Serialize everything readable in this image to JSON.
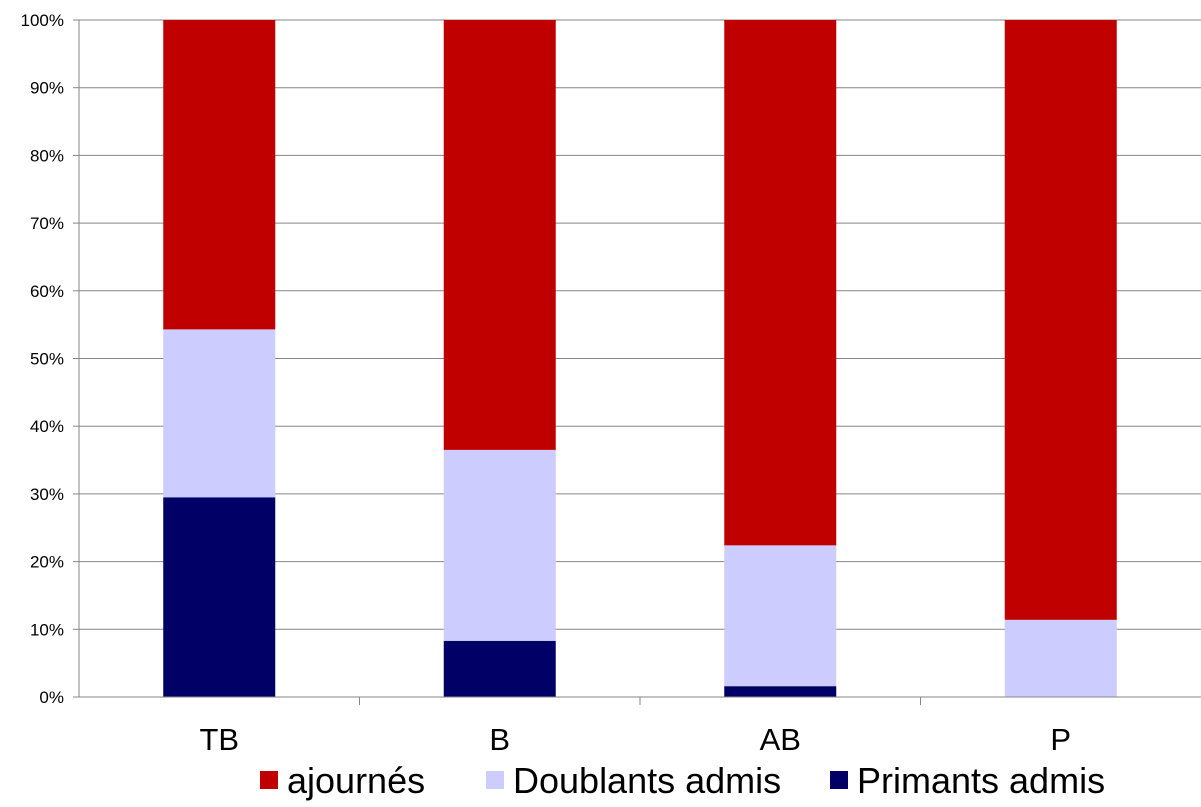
{
  "chart_data": {
    "type": "bar",
    "stacked": true,
    "percent": true,
    "categories": [
      "TB",
      "B",
      "AB",
      "P"
    ],
    "series": [
      {
        "name": "Primants admis",
        "color": "#000066",
        "values": [
          29.5,
          8.3,
          1.6,
          0
        ]
      },
      {
        "name": "Doublants admis",
        "color": "#CCCCFF",
        "values": [
          24.8,
          28.2,
          20.8,
          11.4
        ]
      },
      {
        "name": "ajournés",
        "color": "#C00000",
        "values": [
          45.7,
          63.5,
          77.6,
          88.6
        ]
      }
    ],
    "ylim": [
      0,
      100
    ],
    "yticks": [
      "0%",
      "10%",
      "20%",
      "30%",
      "40%",
      "50%",
      "60%",
      "70%",
      "80%",
      "90%",
      "100%"
    ],
    "grid": true,
    "legend_position": "bottom",
    "legend_order": [
      "ajournés",
      "Doublants admis",
      "Primants admis"
    ],
    "title": "",
    "xlabel": "",
    "ylabel": ""
  }
}
